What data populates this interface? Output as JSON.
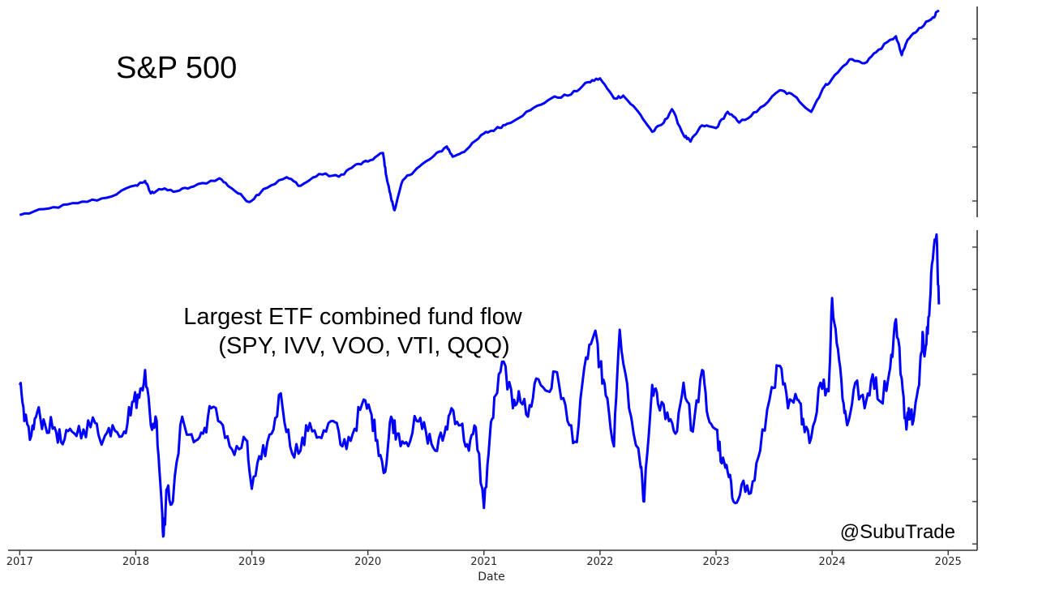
{
  "figure": {
    "credit": "@SubuTrade",
    "line_color": "#0000ff",
    "axis_color": "#333333"
  },
  "chart_data": [
    {
      "type": "line",
      "title": "S&P 500",
      "xlabel": "",
      "ylabel": "",
      "y_ticks_labeled": false,
      "y_tick_values": [
        2500,
        3500,
        4500,
        5500
      ],
      "ylim": [
        2200,
        6100
      ],
      "xlim": [
        2016.9,
        2025.25
      ],
      "grid": false,
      "series": [
        {
          "name": "S&P 500",
          "x": [
            2017.0,
            2017.25,
            2017.5,
            2017.75,
            2018.0,
            2018.08,
            2018.13,
            2018.2,
            2018.35,
            2018.5,
            2018.72,
            2018.83,
            2018.98,
            2019.1,
            2019.3,
            2019.42,
            2019.58,
            2019.75,
            2019.88,
            2020.0,
            2020.13,
            2020.16,
            2020.2,
            2020.23,
            2020.3,
            2020.42,
            2020.55,
            2020.68,
            2020.73,
            2020.85,
            2021.0,
            2021.1,
            2021.2,
            2021.4,
            2021.58,
            2021.75,
            2021.9,
            2022.0,
            2022.12,
            2022.2,
            2022.33,
            2022.45,
            2022.55,
            2022.62,
            2022.72,
            2022.78,
            2022.88,
            2023.0,
            2023.1,
            2023.2,
            2023.35,
            2023.55,
            2023.67,
            2023.82,
            2023.92,
            2024.0,
            2024.15,
            2024.28,
            2024.4,
            2024.55,
            2024.6,
            2024.65,
            2024.75,
            2024.87,
            2024.92
          ],
          "values": [
            2240,
            2360,
            2460,
            2560,
            2790,
            2870,
            2640,
            2720,
            2680,
            2770,
            2920,
            2730,
            2480,
            2720,
            2940,
            2780,
            3000,
            2950,
            3150,
            3230,
            3390,
            2950,
            2550,
            2330,
            2880,
            3100,
            3300,
            3510,
            3320,
            3450,
            3750,
            3830,
            3930,
            4180,
            4400,
            4470,
            4700,
            4770,
            4400,
            4450,
            4150,
            3780,
            3950,
            4200,
            3720,
            3600,
            3900,
            3850,
            4150,
            3950,
            4150,
            4550,
            4450,
            4150,
            4580,
            4760,
            5120,
            5050,
            5300,
            5550,
            5200,
            5480,
            5700,
            5900,
            6030
          ]
        }
      ]
    },
    {
      "type": "line",
      "title": "Largest ETF combined fund flow",
      "subtitle": "(SPY, IVV, VOO, VTI, QQQ)",
      "xlabel": "Date",
      "ylabel": "",
      "y_ticks_labeled": false,
      "y_tick_values": [
        0,
        1,
        2,
        3,
        4,
        5,
        6,
        7
      ],
      "ylim": [
        -0.15,
        7.4
      ],
      "xlim": [
        2016.9,
        2025.25
      ],
      "x_ticks": [
        2017,
        2018,
        2019,
        2020,
        2021,
        2022,
        2023,
        2024,
        2025
      ],
      "x_tick_labels": [
        "2017",
        "2018",
        "2019",
        "2020",
        "2021",
        "2022",
        "2023",
        "2024",
        "2025"
      ],
      "grid": false,
      "series": [
        {
          "name": "Combined fund flow",
          "x": [
            2017.0,
            2017.04,
            2017.1,
            2017.15,
            2017.22,
            2017.3,
            2017.37,
            2017.45,
            2017.55,
            2017.65,
            2017.72,
            2017.8,
            2017.9,
            2017.97,
            2018.03,
            2018.08,
            2018.13,
            2018.18,
            2018.22,
            2018.24,
            2018.27,
            2018.32,
            2018.4,
            2018.5,
            2018.58,
            2018.65,
            2018.75,
            2018.85,
            2018.95,
            2019.0,
            2019.08,
            2019.17,
            2019.25,
            2019.33,
            2019.42,
            2019.5,
            2019.6,
            2019.7,
            2019.78,
            2019.87,
            2019.95,
            2020.02,
            2020.08,
            2020.15,
            2020.2,
            2020.25,
            2020.33,
            2020.42,
            2020.5,
            2020.58,
            2020.66,
            2020.72,
            2020.8,
            2020.87,
            2020.93,
            2021.0,
            2021.05,
            2021.1,
            2021.17,
            2021.25,
            2021.3,
            2021.38,
            2021.45,
            2021.55,
            2021.63,
            2021.72,
            2021.8,
            2021.88,
            2021.95,
            2022.0,
            2022.05,
            2022.12,
            2022.17,
            2022.25,
            2022.35,
            2022.38,
            2022.45,
            2022.5,
            2022.58,
            2022.65,
            2022.72,
            2022.8,
            2022.88,
            2022.93,
            2023.0,
            2023.05,
            2023.1,
            2023.15,
            2023.22,
            2023.3,
            2023.38,
            2023.48,
            2023.55,
            2023.62,
            2023.7,
            2023.75,
            2023.82,
            2023.9,
            2023.97,
            2024.0,
            2024.05,
            2024.1,
            2024.13,
            2024.2,
            2024.28,
            2024.35,
            2024.42,
            2024.5,
            2024.55,
            2024.6,
            2024.64,
            2024.66,
            2024.7,
            2024.75,
            2024.78,
            2024.8,
            2024.83,
            2024.86,
            2024.9,
            2024.92
          ],
          "values": [
            3.75,
            2.9,
            2.55,
            3.1,
            2.8,
            2.75,
            2.35,
            2.65,
            2.7,
            2.85,
            2.45,
            2.8,
            2.65,
            3.35,
            3.45,
            4.1,
            2.8,
            2.9,
            1.1,
            0.2,
            1.3,
            1.0,
            3.0,
            2.4,
            2.6,
            3.2,
            2.8,
            2.1,
            2.45,
            1.3,
            2.0,
            2.6,
            3.55,
            2.3,
            2.2,
            2.85,
            2.5,
            2.9,
            2.3,
            2.6,
            3.3,
            3.15,
            2.45,
            1.7,
            3.0,
            2.6,
            2.4,
            2.9,
            2.65,
            2.2,
            2.6,
            3.2,
            2.8,
            2.2,
            2.75,
            0.85,
            2.5,
            3.5,
            4.3,
            3.2,
            3.6,
            3.0,
            3.9,
            3.6,
            4.05,
            2.9,
            2.4,
            4.4,
            4.95,
            4.25,
            3.5,
            2.3,
            5.05,
            3.2,
            1.8,
            1.0,
            3.75,
            3.3,
            3.1,
            2.6,
            3.8,
            2.65,
            4.1,
            3.0,
            2.7,
            1.9,
            1.7,
            1.0,
            1.4,
            1.2,
            2.2,
            3.7,
            4.2,
            3.2,
            3.4,
            2.95,
            2.5,
            3.8,
            3.6,
            5.8,
            4.6,
            3.3,
            2.8,
            3.8,
            3.2,
            4.0,
            3.35,
            4.15,
            5.3,
            3.9,
            2.7,
            3.2,
            2.9,
            3.75,
            5.0,
            4.5,
            5.35,
            6.6,
            7.3,
            5.65
          ]
        }
      ]
    }
  ]
}
